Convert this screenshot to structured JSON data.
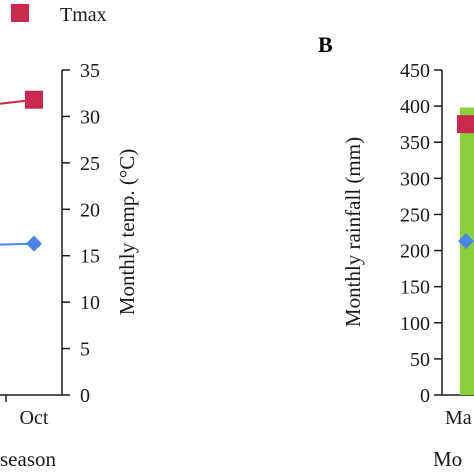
{
  "legend": {
    "items": [
      {
        "label": "Tmax",
        "color": "#c8294e",
        "marker": "square"
      }
    ]
  },
  "chart_data": [
    {
      "type": "line",
      "panel": "",
      "categories": [
        "Oct"
      ],
      "x_label": "season",
      "y_label": "Monthly temp. (°C)",
      "ylim": [
        0,
        35
      ],
      "yticks": [
        0,
        5,
        10,
        15,
        20,
        25,
        30,
        35
      ],
      "series": [
        {
          "name": "Tmax",
          "color": "#c8294e",
          "marker": "square",
          "values": [
            31.8
          ]
        },
        {
          "name": "",
          "color": "#4a86e8",
          "marker": "diamond",
          "values": [
            16.3
          ]
        }
      ]
    },
    {
      "type": "bar",
      "panel": "B",
      "categories": [
        "Ma"
      ],
      "x_label": "Mo",
      "y_label": "Monthly rainfall (mm)",
      "ylim": [
        0,
        450
      ],
      "yticks": [
        0,
        50,
        100,
        150,
        200,
        250,
        300,
        350,
        400,
        450
      ],
      "bars": [
        {
          "category": "Ma",
          "value": 398,
          "color": "#8bcf3a"
        }
      ],
      "series": [
        {
          "name": "Tmax",
          "color": "#c8294e",
          "marker": "square",
          "values": [
            375
          ]
        },
        {
          "name": "",
          "color": "#4a86e8",
          "marker": "diamond",
          "values": [
            213
          ]
        }
      ]
    }
  ]
}
